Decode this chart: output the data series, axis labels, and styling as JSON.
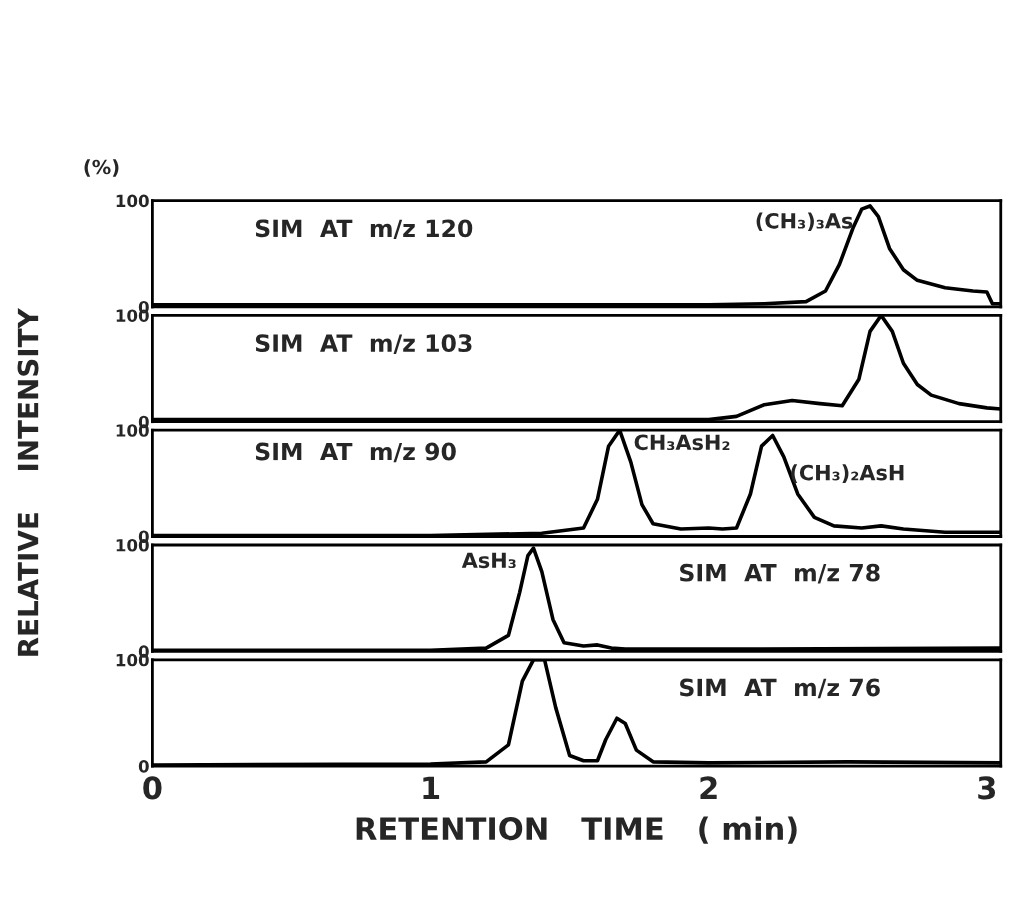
{
  "chart_data": [
    {
      "type": "line",
      "title": "SIM  AT  m/z 120",
      "ylabel": "RELATIVE    INTENSITY",
      "annotations": [
        "(%)",
        {
          "text": "(CH₃)₃As",
          "x": 2.58,
          "y": 95
        }
      ],
      "xlim": [
        0,
        3.05
      ],
      "xticks": [
        0,
        1,
        2,
        3
      ],
      "ylim": [
        0,
        100
      ],
      "yticks": [
        0,
        100
      ],
      "tick_labels": "y",
      "series": [
        {
          "color": "#000000",
          "x": [
            0.0,
            0.5,
            1.0,
            1.5,
            2.0,
            2.2,
            2.35,
            2.42,
            2.47,
            2.52,
            2.55,
            2.58,
            2.61,
            2.65,
            2.7,
            2.75,
            2.85,
            2.95,
            3.0,
            3.02,
            3.05
          ],
          "values": [
            2,
            2,
            2,
            2,
            2,
            3,
            5,
            15,
            40,
            75,
            92,
            95,
            85,
            55,
            35,
            25,
            18,
            15,
            14,
            3,
            3
          ]
        }
      ]
    },
    {
      "type": "line",
      "title": "SIM  AT  m/z 103",
      "xlim": [
        0,
        3.05
      ],
      "xticks": [
        0,
        1,
        2,
        3
      ],
      "ylim": [
        0,
        100
      ],
      "yticks": [
        0,
        100
      ],
      "tick_labels": "y",
      "series": [
        {
          "color": "#000000",
          "x": [
            0,
            0.5,
            1.0,
            1.5,
            2.0,
            2.1,
            2.2,
            2.3,
            2.4,
            2.48,
            2.54,
            2.58,
            2.62,
            2.66,
            2.7,
            2.75,
            2.8,
            2.9,
            3.0,
            3.05
          ],
          "values": [
            2,
            2,
            2,
            2,
            2,
            5,
            16,
            20,
            17,
            15,
            40,
            85,
            100,
            85,
            55,
            35,
            25,
            17,
            13,
            12
          ]
        }
      ]
    },
    {
      "type": "line",
      "title": "SIM  AT  m/z 90",
      "annotations": [
        {
          "text": "CH₃AsH₂",
          "x": 1.68,
          "y": 100
        },
        {
          "text": "(CH₃)₂AsH",
          "x": 2.23,
          "y": 95
        }
      ],
      "xlim": [
        0,
        3.05
      ],
      "xticks": [
        0,
        1,
        2,
        3
      ],
      "ylim": [
        0,
        100
      ],
      "yticks": [
        0,
        100
      ],
      "tick_labels": "y",
      "series": [
        {
          "color": "#000000",
          "x": [
            0,
            1.0,
            1.4,
            1.55,
            1.6,
            1.64,
            1.68,
            1.72,
            1.76,
            1.8,
            1.9,
            2.0,
            2.05,
            2.1,
            2.15,
            2.19,
            2.23,
            2.27,
            2.32,
            2.38,
            2.45,
            2.55,
            2.62,
            2.7,
            2.85,
            3.05
          ],
          "values": [
            1,
            1,
            3,
            8,
            35,
            85,
            100,
            70,
            30,
            12,
            7,
            8,
            7,
            8,
            40,
            85,
            95,
            75,
            40,
            18,
            10,
            8,
            10,
            7,
            4,
            4
          ]
        }
      ]
    },
    {
      "type": "line",
      "title": "SIM  AT  m/z 78",
      "annotations": [
        {
          "text": "AsH₃",
          "x": 1.37,
          "y": 97
        }
      ],
      "xlim": [
        0,
        3.05
      ],
      "xticks": [
        0,
        1,
        2,
        3
      ],
      "ylim": [
        0,
        100
      ],
      "yticks": [
        0,
        100
      ],
      "tick_labels": "y",
      "series": [
        {
          "color": "#000000",
          "x": [
            0,
            1.0,
            1.2,
            1.28,
            1.32,
            1.35,
            1.37,
            1.4,
            1.44,
            1.48,
            1.55,
            1.6,
            1.65,
            1.7,
            2.0,
            3.05
          ],
          "values": [
            1,
            1,
            3,
            15,
            55,
            90,
            97,
            75,
            30,
            8,
            5,
            6,
            3,
            2,
            2,
            3
          ]
        }
      ]
    },
    {
      "type": "line",
      "title": "SIM  AT  m/z 76",
      "xlabel": "RETENTION   TIME   ( min)",
      "xlim": [
        0,
        3.05
      ],
      "xticks": [
        0,
        1,
        2,
        3
      ],
      "ylim": [
        0,
        100
      ],
      "yticks": [
        0,
        100
      ],
      "series": [
        {
          "color": "#000000",
          "x": [
            0,
            1.0,
            1.2,
            1.28,
            1.33,
            1.37,
            1.41,
            1.45,
            1.5,
            1.55,
            1.6,
            1.63,
            1.67,
            1.7,
            1.74,
            1.8,
            2.0,
            2.5,
            3.05
          ],
          "values": [
            1,
            2,
            4,
            20,
            80,
            100,
            100,
            55,
            10,
            5,
            5,
            25,
            45,
            40,
            15,
            4,
            3,
            4,
            3
          ]
        }
      ]
    }
  ]
}
